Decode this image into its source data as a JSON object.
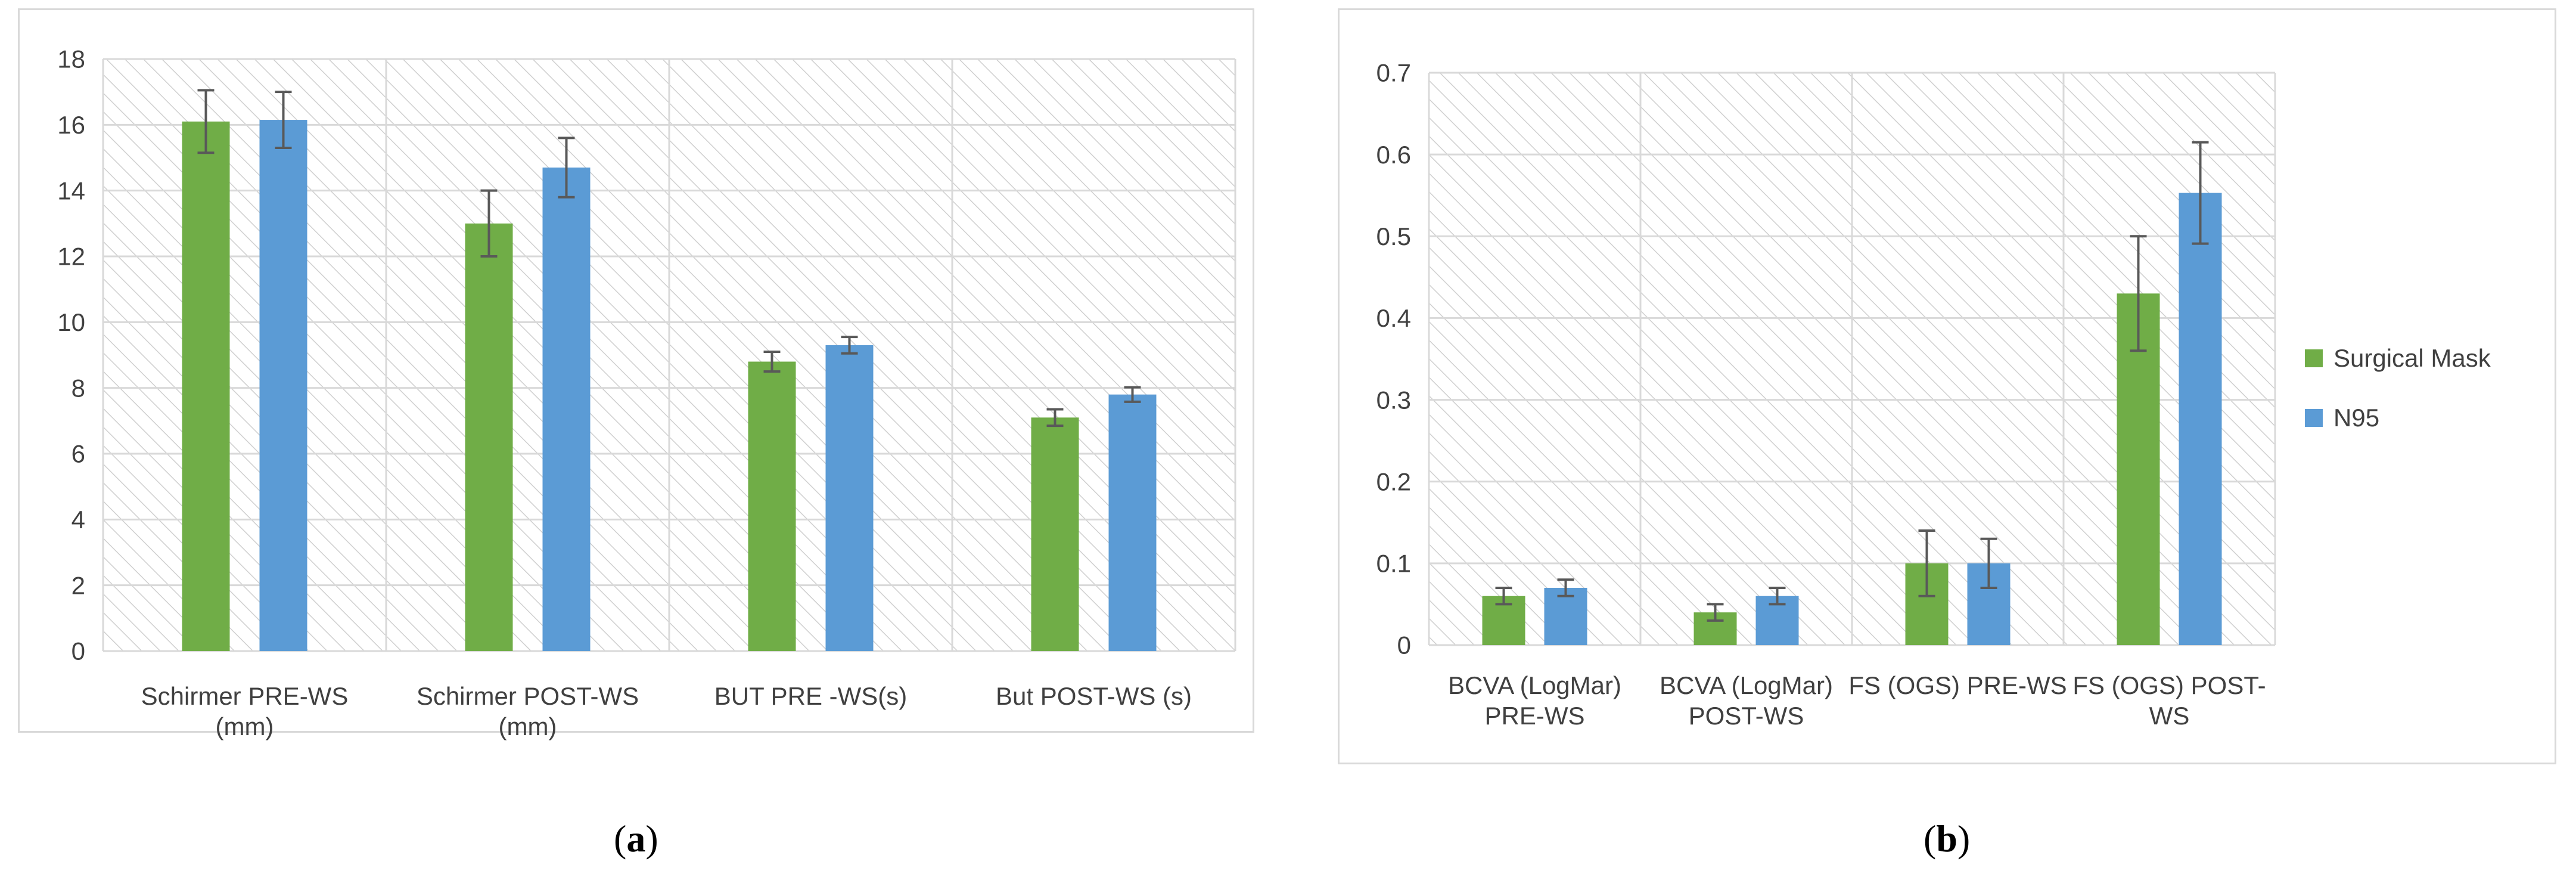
{
  "chart_data": [
    {
      "type": "bar",
      "panel_label": "a",
      "categories": [
        [
          "Schirmer PRE-WS",
          "(mm)"
        ],
        [
          "Schirmer POST-WS",
          "(mm)"
        ],
        [
          "BUT PRE -WS(s)"
        ],
        [
          "But POST-WS (s)"
        ]
      ],
      "series": [
        {
          "name": "Surgical Mask",
          "color": "#70ad47",
          "values": [
            16.1,
            13.0,
            8.8,
            7.1
          ],
          "errors": [
            0.95,
            1.0,
            0.3,
            0.25
          ]
        },
        {
          "name": "N95",
          "color": "#5b9bd5",
          "values": [
            16.15,
            14.7,
            9.3,
            7.8
          ],
          "errors": [
            0.85,
            0.9,
            0.25,
            0.22
          ]
        }
      ],
      "yticks": [
        "0",
        "2",
        "4",
        "6",
        "8",
        "10",
        "12",
        "14",
        "16",
        "18"
      ],
      "ylim": [
        0,
        18
      ],
      "grid": true,
      "legend": "none"
    },
    {
      "type": "bar",
      "panel_label": "b",
      "categories": [
        [
          "BCVA (LogMar)",
          "PRE-WS"
        ],
        [
          "BCVA (LogMar)",
          "POST-WS"
        ],
        [
          "FS (OGS) PRE-WS"
        ],
        [
          "FS (OGS) POST-",
          "WS"
        ]
      ],
      "series": [
        {
          "name": "Surgical Mask",
          "color": "#70ad47",
          "values": [
            0.06,
            0.04,
            0.1,
            0.43
          ],
          "errors": [
            0.01,
            0.01,
            0.04,
            0.07
          ]
        },
        {
          "name": "N95",
          "color": "#5b9bd5",
          "values": [
            0.07,
            0.06,
            0.1,
            0.553
          ],
          "errors": [
            0.01,
            0.01,
            0.03,
            0.062
          ]
        }
      ],
      "yticks": [
        "0",
        "0.1",
        "0.2",
        "0.3",
        "0.4",
        "0.5",
        "0.6",
        "0.7"
      ],
      "ylim": [
        0,
        0.7
      ],
      "grid": true,
      "legend": "right"
    }
  ]
}
